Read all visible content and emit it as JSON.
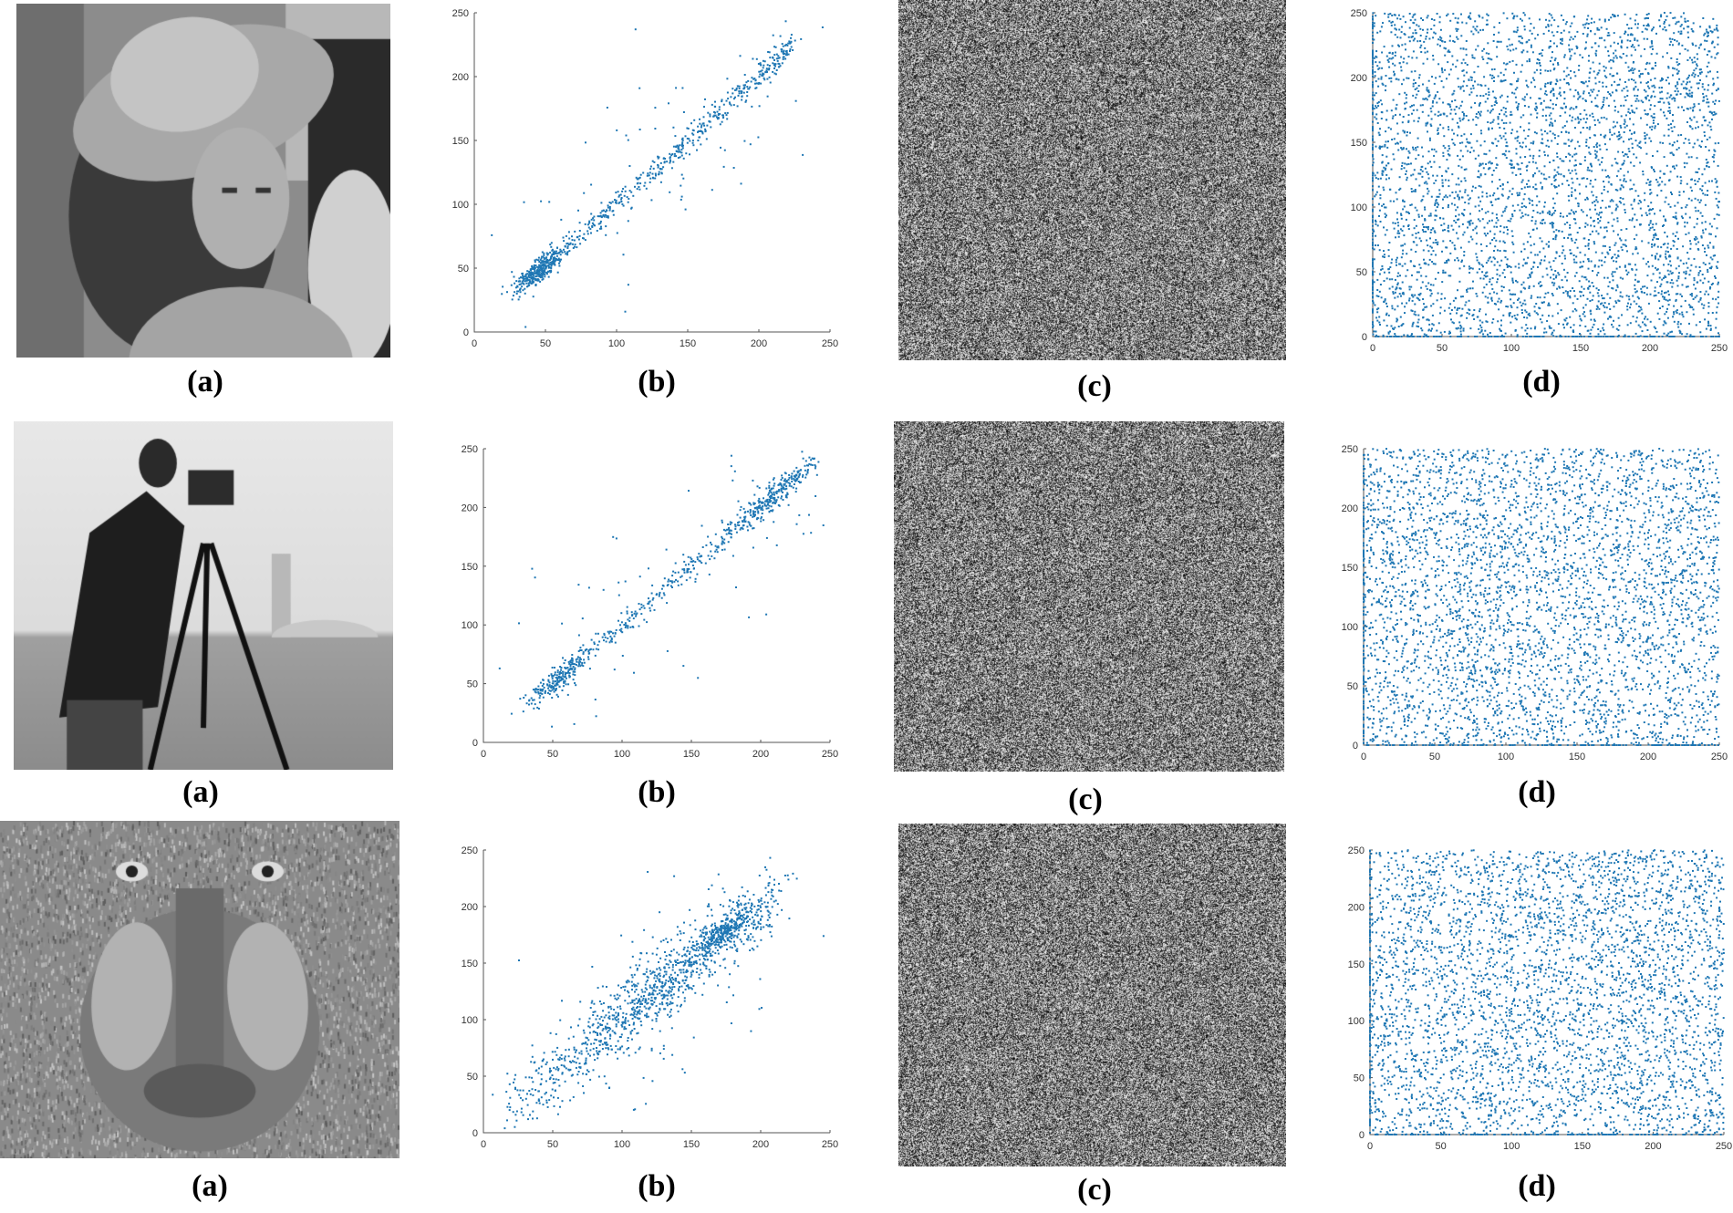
{
  "colors": {
    "marker": "#1f77b4",
    "axis": "#555555",
    "noise_light": "#ffffff",
    "noise_dark": "#000000"
  },
  "images": [
    {
      "name": "lena-hat-portrait",
      "kind": "grayscale-photo"
    },
    {
      "name": "cameraman",
      "kind": "grayscale-photo"
    },
    {
      "name": "baboon-mandrill",
      "kind": "grayscale-photo"
    }
  ],
  "rows": [
    {
      "labels": {
        "a": "(a)",
        "b": "(b)",
        "c": "(c)",
        "d": "(d)"
      },
      "chart_data": [
        {
          "type": "scatter",
          "panel": "b",
          "xlim": [
            0,
            250
          ],
          "ylim": [
            0,
            250
          ],
          "xticks": [
            "0",
            "50",
            "100",
            "150",
            "200",
            "250"
          ],
          "yticks": [
            "0",
            "50",
            "100",
            "150",
            "200",
            "250"
          ],
          "distribution": {
            "pattern": "correlated along diagonal y≈x",
            "clusters": [
              {
                "x": 45,
                "y": 48,
                "spread": 10
              }
            ],
            "diagonal_range": [
              40,
              225
            ],
            "approx_points": 900
          }
        },
        {
          "type": "scatter",
          "panel": "d",
          "xlim": [
            0,
            250
          ],
          "ylim": [
            0,
            250
          ],
          "xticks": [
            "0",
            "50",
            "100",
            "150",
            "200",
            "250"
          ],
          "yticks": [
            "0",
            "50",
            "100",
            "150",
            "200",
            "250"
          ],
          "distribution": {
            "pattern": "uniform random over [0,250]x[0,250]",
            "approx_points": 4000
          }
        }
      ]
    },
    {
      "labels": {
        "a": "(a)",
        "b": "(b)",
        "c": "(c)",
        "d": "(d)"
      },
      "chart_data": [
        {
          "type": "scatter",
          "panel": "b",
          "xlim": [
            0,
            250
          ],
          "ylim": [
            0,
            250
          ],
          "xticks": [
            "0",
            "50",
            "100",
            "150",
            "200",
            "250"
          ],
          "yticks": [
            "0",
            "50",
            "100",
            "150",
            "200",
            "250"
          ],
          "distribution": {
            "pattern": "two dense clusters on diagonal with sparse scatter",
            "clusters": [
              {
                "x": 55,
                "y": 55,
                "spread": 12
              },
              {
                "x": 210,
                "y": 210,
                "spread": 14
              }
            ],
            "diagonal_range": [
              30,
              240
            ],
            "approx_points": 800
          }
        },
        {
          "type": "scatter",
          "panel": "d",
          "xlim": [
            0,
            250
          ],
          "ylim": [
            0,
            250
          ],
          "xticks": [
            "0",
            "50",
            "100",
            "150",
            "200",
            "250"
          ],
          "yticks": [
            "0",
            "50",
            "100",
            "150",
            "200",
            "250"
          ],
          "distribution": {
            "pattern": "uniform random over [0,250]x[0,250]",
            "approx_points": 4000
          }
        }
      ]
    },
    {
      "labels": {
        "a": "(a)",
        "b": "(b)",
        "c": "(c)",
        "d": "(d)"
      },
      "chart_data": [
        {
          "type": "scatter",
          "panel": "b",
          "xlim": [
            0,
            250
          ],
          "ylim": [
            0,
            250
          ],
          "xticks": [
            "0",
            "50",
            "100",
            "150",
            "200",
            "250"
          ],
          "yticks": [
            "0",
            "50",
            "100",
            "150",
            "200",
            "250"
          ],
          "distribution": {
            "pattern": "broad band along diagonal",
            "clusters": [
              {
                "x": 125,
                "y": 130,
                "spread": 30
              },
              {
                "x": 175,
                "y": 180,
                "spread": 12
              }
            ],
            "diagonal_range": [
              20,
              210
            ],
            "approx_points": 1400
          }
        },
        {
          "type": "scatter",
          "panel": "d",
          "xlim": [
            0,
            250
          ],
          "ylim": [
            0,
            250
          ],
          "xticks": [
            "0",
            "50",
            "100",
            "150",
            "200",
            "250"
          ],
          "yticks": [
            "0",
            "50",
            "100",
            "150",
            "200",
            "250"
          ],
          "distribution": {
            "pattern": "uniform random over [0,250]x[0,250]",
            "approx_points": 4000
          }
        }
      ]
    }
  ]
}
